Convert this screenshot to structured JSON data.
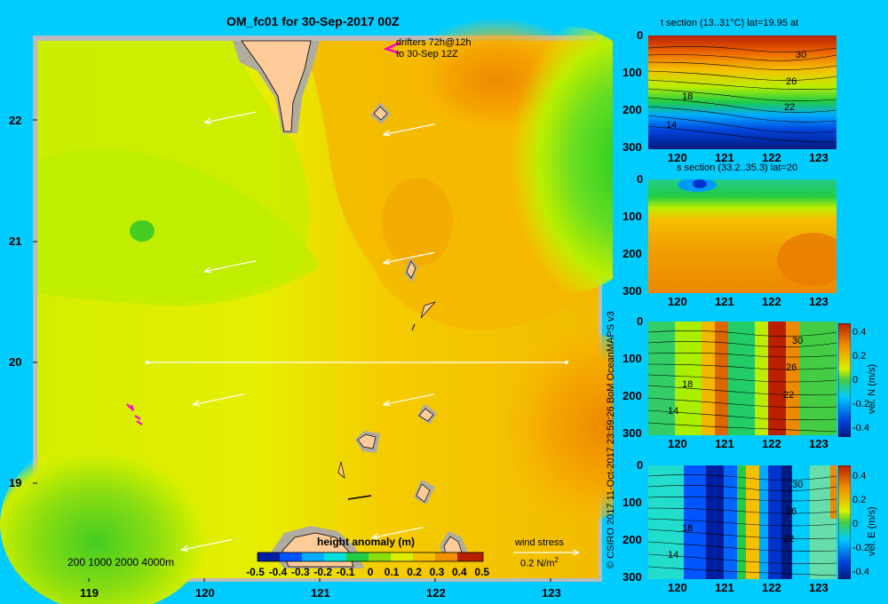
{
  "main": {
    "title": "OM_fc01 for 30-Sep-2017 00Z",
    "x_ticks": [
      "119",
      "120",
      "121",
      "122",
      "123"
    ],
    "y_ticks": [
      "22",
      "21",
      "20",
      "19"
    ],
    "drifter_note_1": "drifters 72h@12h",
    "drifter_note_2": "to 30-Sep 12Z",
    "depth_legend": "200  1000  2000  4000m",
    "cbar_title": "height anomaly (m)",
    "cbar_ticks": [
      "-0.5",
      "-0.4",
      "-0.3",
      "-0.2",
      "-0.1",
      "0",
      "0.1",
      "0.2",
      "0.3",
      "0.4",
      "0.5"
    ],
    "wind_title": "wind stress",
    "wind_value": "0.2 N/m",
    "wind_exp": "2"
  },
  "credit": "© CSIRO 2017   11-Oct-2017 23:59:26 BoM OceanMAPS v3",
  "sections": [
    {
      "title": "t section (13..31°C) lat=19.95 at",
      "labels": [
        "30",
        "26",
        "22",
        "18",
        "14"
      ]
    },
    {
      "title": "s section (33.2..35.3) lat=20",
      "labels": []
    },
    {
      "title": "",
      "labels": [
        "30",
        "26",
        "22",
        "18",
        "14"
      ],
      "cbar_label": "vel. N  (m/s)",
      "cbar_ticks": [
        "0.4",
        "0.2",
        "0",
        "-0.2",
        "-0.4"
      ]
    },
    {
      "title": "",
      "labels": [
        "30",
        "26",
        "22",
        "18",
        "14"
      ],
      "cbar_label": "vel. E  (m/s)",
      "cbar_ticks": [
        "0.4",
        "0.2",
        "0",
        "-0.2",
        "-0.4"
      ]
    }
  ],
  "section_x_ticks": [
    "120",
    "121",
    "122",
    "123"
  ],
  "section_y_ticks": [
    "0",
    "100",
    "200",
    "300"
  ],
  "chart_data": [
    {
      "type": "heatmap",
      "title": "OM_fc01 for 30-Sep-2017 00Z",
      "xlabel": "",
      "ylabel": "",
      "xlim": [
        118.5,
        123.5
      ],
      "ylim": [
        18.3,
        22.7
      ],
      "colorbar": {
        "title": "height anomaly (m)",
        "range": [
          -0.5,
          0.5
        ]
      },
      "section_line": {
        "lon": [
          119.5,
          123.2
        ],
        "lat": [
          20,
          20
        ]
      },
      "wind_vectors": [
        {
          "lon": 120.0,
          "lat": 21.98
        },
        {
          "lon": 121.55,
          "lat": 21.88
        },
        {
          "lon": 120.0,
          "lat": 20.75
        },
        {
          "lon": 121.55,
          "lat": 20.82
        },
        {
          "lon": 119.9,
          "lat": 19.65
        },
        {
          "lon": 121.55,
          "lat": 19.65
        },
        {
          "lon": 119.8,
          "lat": 18.45
        },
        {
          "lon": 121.45,
          "lat": 18.55
        }
      ]
    },
    {
      "type": "heatmap",
      "title": "t section (13..31°C) lat=19.95 at",
      "xlim": [
        119.6,
        123.2
      ],
      "ylim": [
        300,
        0
      ],
      "contours": [
        30,
        26,
        22,
        18,
        14
      ]
    },
    {
      "type": "heatmap",
      "title": "s section (33.2..35.3) lat=20",
      "xlim": [
        119.6,
        123.2
      ],
      "ylim": [
        300,
        0
      ]
    },
    {
      "type": "heatmap",
      "title": "",
      "xlim": [
        119.6,
        123.2
      ],
      "ylim": [
        300,
        0
      ],
      "colorbar": {
        "title": "vel. N  (m/s)",
        "range": [
          -0.4,
          0.4
        ]
      }
    },
    {
      "type": "heatmap",
      "title": "",
      "xlim": [
        119.6,
        123.2
      ],
      "ylim": [
        300,
        0
      ],
      "colorbar": {
        "title": "vel. E  (m/s)",
        "range": [
          -0.4,
          0.4
        ]
      }
    }
  ]
}
